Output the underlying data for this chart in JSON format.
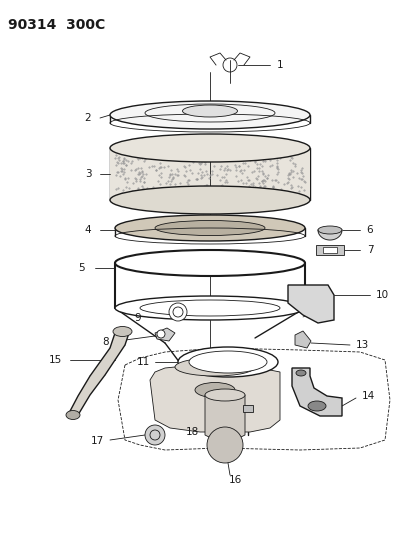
{
  "title": "90314  300C",
  "bg_color": "#ffffff",
  "line_color": "#1a1a1a",
  "title_fontsize": 10,
  "label_fontsize": 7.5,
  "figsize": [
    4.14,
    5.33
  ],
  "dpi": 100
}
